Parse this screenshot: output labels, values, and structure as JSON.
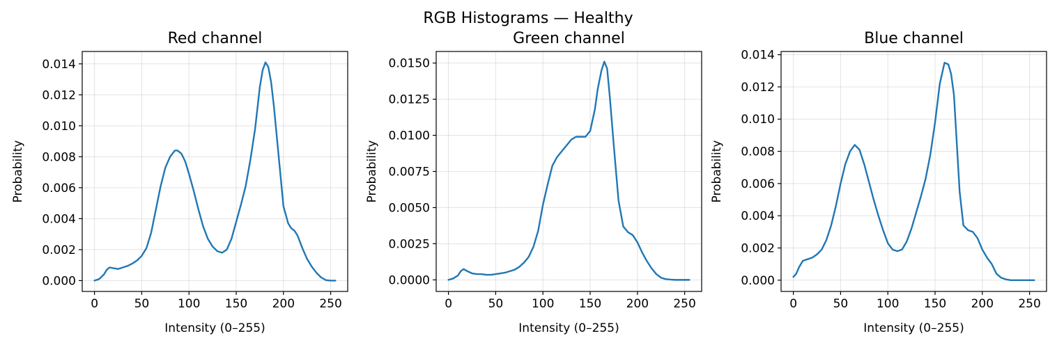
{
  "suptitle": "RGB Histograms — Healthy",
  "colors": {
    "line": "#1f77b4",
    "grid": "#b0b0b0",
    "frame": "#000000"
  },
  "chart_data": [
    {
      "type": "line",
      "title": "Red channel",
      "xlabel": "Intensity (0–255)",
      "ylabel": "Probability",
      "xlim": [
        -13,
        268
      ],
      "ylim": [
        -0.0007,
        0.0148
      ],
      "xticks": [
        0,
        50,
        100,
        150,
        200,
        250
      ],
      "xtick_labels": [
        "0",
        "50",
        "100",
        "150",
        "200",
        "250"
      ],
      "yticks": [
        0,
        0.002,
        0.004,
        0.006,
        0.008,
        0.01,
        0.012,
        0.014
      ],
      "ytick_labels": [
        "0.000",
        "0.002",
        "0.004",
        "0.006",
        "0.008",
        "0.010",
        "0.012",
        "0.014"
      ],
      "grid": true,
      "series": [
        {
          "x": [
            0,
            5,
            10,
            13,
            16,
            20,
            25,
            30,
            35,
            40,
            45,
            50,
            55,
            60,
            65,
            70,
            75,
            80,
            85,
            88,
            92,
            96,
            100,
            105,
            110,
            115,
            120,
            125,
            130,
            135,
            140,
            145,
            150,
            155,
            160,
            165,
            170,
            175,
            178,
            181,
            184,
            187,
            190,
            195,
            200,
            205,
            208,
            212,
            215,
            220,
            225,
            230,
            235,
            240,
            245,
            250,
            255
          ],
          "y": [
            0,
            0.0001,
            0.0004,
            0.0007,
            0.00085,
            0.0008,
            0.00075,
            0.00085,
            0.00095,
            0.0011,
            0.0013,
            0.0016,
            0.0021,
            0.0031,
            0.0046,
            0.0061,
            0.0073,
            0.008,
            0.0084,
            0.0084,
            0.0082,
            0.0077,
            0.0069,
            0.0058,
            0.0046,
            0.0035,
            0.0027,
            0.0022,
            0.0019,
            0.0018,
            0.002,
            0.0027,
            0.0038,
            0.0049,
            0.0061,
            0.0078,
            0.0098,
            0.0125,
            0.0136,
            0.0141,
            0.0138,
            0.0128,
            0.0112,
            0.008,
            0.0048,
            0.0037,
            0.0034,
            0.0032,
            0.0029,
            0.0021,
            0.0014,
            0.0009,
            0.0005,
            0.0002,
            3e-05,
            0,
            0
          ]
        }
      ]
    },
    {
      "type": "line",
      "title": "Green channel",
      "xlabel": "Intensity (0–255)",
      "ylabel": "Probability",
      "xlim": [
        -13,
        268
      ],
      "ylim": [
        -0.0008,
        0.0158
      ],
      "xticks": [
        0,
        50,
        100,
        150,
        200,
        250
      ],
      "xtick_labels": [
        "0",
        "50",
        "100",
        "150",
        "200",
        "250"
      ],
      "yticks": [
        0,
        0.0025,
        0.005,
        0.0075,
        0.01,
        0.0125,
        0.015
      ],
      "ytick_labels": [
        "0.0000",
        "0.0025",
        "0.0050",
        "0.0075",
        "0.0100",
        "0.0125",
        "0.0150"
      ],
      "grid": true,
      "series": [
        {
          "x": [
            0,
            5,
            10,
            13,
            16,
            20,
            25,
            30,
            35,
            40,
            45,
            50,
            55,
            60,
            65,
            70,
            75,
            80,
            85,
            90,
            95,
            100,
            105,
            110,
            115,
            120,
            125,
            130,
            135,
            140,
            145,
            150,
            155,
            158,
            162,
            165,
            168,
            171,
            175,
            180,
            185,
            190,
            195,
            200,
            205,
            210,
            215,
            220,
            225,
            230,
            235,
            240,
            245,
            250,
            255
          ],
          "y": [
            0,
            0.0001,
            0.0003,
            0.0006,
            0.00075,
            0.0006,
            0.00045,
            0.0004,
            0.0004,
            0.00035,
            0.00035,
            0.0004,
            0.00045,
            0.0005,
            0.0006,
            0.0007,
            0.0009,
            0.0012,
            0.0016,
            0.0023,
            0.0034,
            0.0052,
            0.0066,
            0.0079,
            0.0085,
            0.0089,
            0.0093,
            0.0097,
            0.0099,
            0.0099,
            0.0099,
            0.0103,
            0.0118,
            0.0132,
            0.0145,
            0.0151,
            0.0146,
            0.0125,
            0.0093,
            0.0055,
            0.0037,
            0.0033,
            0.0031,
            0.0026,
            0.0019,
            0.0013,
            0.0008,
            0.0004,
            0.00015,
            5e-05,
            2e-05,
            0,
            0,
            0,
            0
          ]
        }
      ]
    },
    {
      "type": "line",
      "title": "Blue channel",
      "xlabel": "Intensity (0–255)",
      "ylabel": "Probability",
      "xlim": [
        -13,
        268
      ],
      "ylim": [
        -0.0007,
        0.0142
      ],
      "xticks": [
        0,
        50,
        100,
        150,
        200,
        250
      ],
      "xtick_labels": [
        "0",
        "50",
        "100",
        "150",
        "200",
        "250"
      ],
      "yticks": [
        0,
        0.002,
        0.004,
        0.006,
        0.008,
        0.01,
        0.012,
        0.014
      ],
      "ytick_labels": [
        "0.000",
        "0.002",
        "0.004",
        "0.006",
        "0.008",
        "0.010",
        "0.012",
        "0.014"
      ],
      "grid": true,
      "series": [
        {
          "x": [
            0,
            3,
            6,
            10,
            15,
            20,
            25,
            30,
            35,
            40,
            45,
            50,
            55,
            60,
            65,
            70,
            75,
            80,
            85,
            90,
            95,
            100,
            105,
            110,
            115,
            120,
            125,
            130,
            135,
            140,
            145,
            150,
            155,
            160,
            164,
            167,
            170,
            173,
            176,
            180,
            185,
            190,
            195,
            200,
            205,
            210,
            215,
            220,
            225,
            230,
            235,
            240,
            245,
            250,
            255
          ],
          "y": [
            0.0002,
            0.0004,
            0.0008,
            0.0012,
            0.0013,
            0.0014,
            0.0016,
            0.0019,
            0.0025,
            0.0034,
            0.0046,
            0.006,
            0.0072,
            0.008,
            0.0084,
            0.0081,
            0.0072,
            0.0061,
            0.005,
            0.004,
            0.0031,
            0.0023,
            0.0019,
            0.0018,
            0.0019,
            0.0024,
            0.0032,
            0.0042,
            0.0052,
            0.0063,
            0.0078,
            0.0098,
            0.0122,
            0.0135,
            0.0134,
            0.0128,
            0.0115,
            0.0085,
            0.0055,
            0.0034,
            0.0031,
            0.003,
            0.0026,
            0.0019,
            0.0014,
            0.001,
            0.0004,
            0.00015,
            5e-05,
            0,
            0,
            0,
            0,
            0,
            0
          ]
        }
      ]
    }
  ]
}
